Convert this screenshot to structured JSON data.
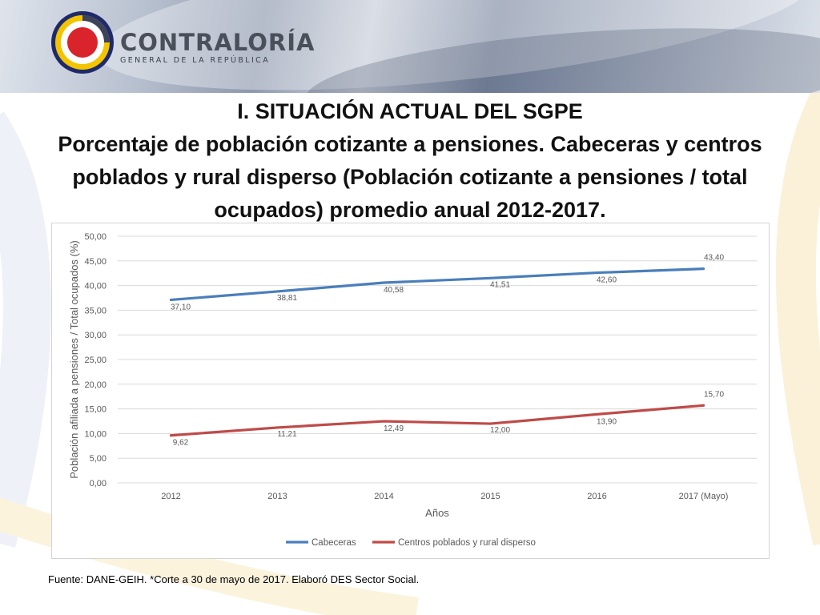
{
  "header": {
    "brand_name": "CONTRALORÍA",
    "brand_sub": "GENERAL DE LA REPÚBLICA"
  },
  "slide": {
    "section_title": "I. SITUACIÓN ACTUAL DEL SGPE",
    "chart_title": "Porcentaje de población cotizante a pensiones.  Cabeceras y centros poblados y rural disperso (Población cotizante a pensiones / total ocupados) promedio anual 2012-2017.",
    "source": "Fuente: DANE-GEIH.  *Corte a 30 de mayo de 2017. Elaboró DES Sector Social."
  },
  "colors": {
    "cabeceras": "#4a7ebb",
    "centros": "#be4b48",
    "grid": "#d9d9d9"
  },
  "chart_data": {
    "type": "line",
    "title": "",
    "xlabel": "Años",
    "ylabel": "Población afiliada a pensiones / Total ocupados (%)",
    "categories": [
      "2012",
      "2013",
      "2014",
      "2015",
      "2016",
      "2017 (Mayo)"
    ],
    "ylim": [
      0,
      50
    ],
    "ytick_labels": [
      "0,00",
      "5,00",
      "10,00",
      "15,00",
      "20,00",
      "25,00",
      "30,00",
      "35,00",
      "40,00",
      "45,00",
      "50,00"
    ],
    "grid": true,
    "legend_position": "bottom",
    "series": [
      {
        "name": "Cabeceras",
        "values": [
          37.1,
          38.81,
          40.58,
          41.51,
          42.6,
          43.4
        ],
        "labels": [
          "37,10",
          "38,81",
          "40,58",
          "41,51",
          "42,60",
          "43,40"
        ]
      },
      {
        "name": "Centros poblados y rural disperso",
        "values": [
          9.62,
          11.21,
          12.49,
          12.0,
          13.9,
          15.7
        ],
        "labels": [
          "9,62",
          "11,21",
          "12,49",
          "12,00",
          "13,90",
          "15,70"
        ]
      }
    ]
  }
}
